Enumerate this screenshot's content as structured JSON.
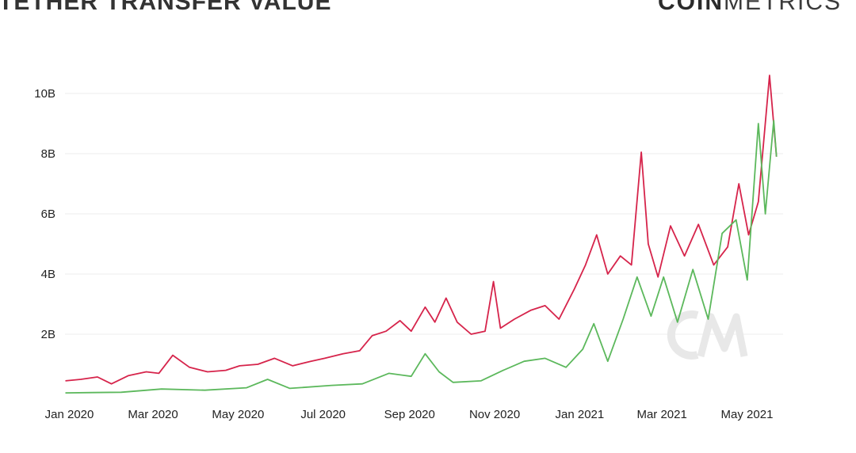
{
  "header": {
    "title": "TETHER TRANSFER VALUE",
    "brand_bold": "COIN",
    "brand_thin": "METRICS"
  },
  "colors": {
    "red": "#d6244b",
    "green": "#5cb85c",
    "grid": "#ececec",
    "watermark": "#e8e8e8"
  },
  "chart_data": {
    "type": "line",
    "title": "TETHER TRANSFER VALUE",
    "xlabel": "",
    "ylabel": "",
    "ylim": [
      0,
      11
    ],
    "y_ticks": [
      {
        "value": 2,
        "label": "2B"
      },
      {
        "value": 4,
        "label": "4B"
      },
      {
        "value": 6,
        "label": "6B"
      },
      {
        "value": 8,
        "label": "8B"
      },
      {
        "value": 10,
        "label": "10B"
      }
    ],
    "x_ticks": [
      {
        "date": "2020-01-01",
        "label": "Jan 2020"
      },
      {
        "date": "2020-03-01",
        "label": "Mar 2020"
      },
      {
        "date": "2020-05-01",
        "label": "May 2020"
      },
      {
        "date": "2020-07-01",
        "label": "Jul 2020"
      },
      {
        "date": "2020-09-01",
        "label": "Sep 2020"
      },
      {
        "date": "2020-11-01",
        "label": "Nov 2020"
      },
      {
        "date": "2021-01-01",
        "label": "Jan 2021"
      },
      {
        "date": "2021-03-01",
        "label": "Mar 2021"
      },
      {
        "date": "2021-05-01",
        "label": "May 2021"
      }
    ],
    "grid": true,
    "legend_position": "bottom",
    "series": [
      {
        "color": "#d6244b",
        "points": [
          [
            "2020-01-01",
            0.45
          ],
          [
            "2020-01-12",
            0.5
          ],
          [
            "2020-01-24",
            0.58
          ],
          [
            "2020-02-03",
            0.35
          ],
          [
            "2020-02-15",
            0.62
          ],
          [
            "2020-02-28",
            0.75
          ],
          [
            "2020-03-08",
            0.7
          ],
          [
            "2020-03-18",
            1.3
          ],
          [
            "2020-03-30",
            0.9
          ],
          [
            "2020-04-12",
            0.75
          ],
          [
            "2020-04-25",
            0.8
          ],
          [
            "2020-05-05",
            0.95
          ],
          [
            "2020-05-18",
            1.0
          ],
          [
            "2020-05-30",
            1.2
          ],
          [
            "2020-06-12",
            0.95
          ],
          [
            "2020-06-25",
            1.1
          ],
          [
            "2020-07-05",
            1.2
          ],
          [
            "2020-07-18",
            1.35
          ],
          [
            "2020-07-30",
            1.45
          ],
          [
            "2020-08-08",
            1.95
          ],
          [
            "2020-08-18",
            2.1
          ],
          [
            "2020-08-28",
            2.45
          ],
          [
            "2020-09-05",
            2.1
          ],
          [
            "2020-09-15",
            2.9
          ],
          [
            "2020-09-22",
            2.4
          ],
          [
            "2020-09-30",
            3.2
          ],
          [
            "2020-10-08",
            2.4
          ],
          [
            "2020-10-18",
            2.0
          ],
          [
            "2020-10-28",
            2.1
          ],
          [
            "2020-11-03",
            3.75
          ],
          [
            "2020-11-08",
            2.2
          ],
          [
            "2020-11-18",
            2.5
          ],
          [
            "2020-11-30",
            2.8
          ],
          [
            "2020-12-10",
            2.95
          ],
          [
            "2020-12-20",
            2.5
          ],
          [
            "2020-12-31",
            3.5
          ],
          [
            "2021-01-08",
            4.3
          ],
          [
            "2021-01-16",
            5.3
          ],
          [
            "2021-01-24",
            4.0
          ],
          [
            "2021-02-02",
            4.6
          ],
          [
            "2021-02-10",
            4.3
          ],
          [
            "2021-02-17",
            8.05
          ],
          [
            "2021-02-22",
            5.0
          ],
          [
            "2021-03-01",
            3.9
          ],
          [
            "2021-03-10",
            5.6
          ],
          [
            "2021-03-20",
            4.6
          ],
          [
            "2021-03-30",
            5.65
          ],
          [
            "2021-04-10",
            4.3
          ],
          [
            "2021-04-20",
            4.9
          ],
          [
            "2021-04-28",
            7.0
          ],
          [
            "2021-05-05",
            5.3
          ],
          [
            "2021-05-12",
            6.4
          ],
          [
            "2021-05-20",
            10.6
          ],
          [
            "2021-05-25",
            7.9
          ]
        ]
      },
      {
        "color": "#5cb85c",
        "points": [
          [
            "2020-01-01",
            0.05
          ],
          [
            "2020-01-20",
            0.06
          ],
          [
            "2020-02-10",
            0.07
          ],
          [
            "2020-03-10",
            0.18
          ],
          [
            "2020-04-10",
            0.14
          ],
          [
            "2020-05-10",
            0.22
          ],
          [
            "2020-05-25",
            0.5
          ],
          [
            "2020-06-10",
            0.2
          ],
          [
            "2020-07-10",
            0.3
          ],
          [
            "2020-08-01",
            0.35
          ],
          [
            "2020-08-20",
            0.7
          ],
          [
            "2020-09-05",
            0.6
          ],
          [
            "2020-09-15",
            1.35
          ],
          [
            "2020-09-25",
            0.75
          ],
          [
            "2020-10-05",
            0.4
          ],
          [
            "2020-10-25",
            0.45
          ],
          [
            "2020-11-10",
            0.8
          ],
          [
            "2020-11-25",
            1.1
          ],
          [
            "2020-12-10",
            1.2
          ],
          [
            "2020-12-25",
            0.9
          ],
          [
            "2021-01-06",
            1.5
          ],
          [
            "2021-01-14",
            2.35
          ],
          [
            "2021-01-24",
            1.1
          ],
          [
            "2021-02-04",
            2.5
          ],
          [
            "2021-02-14",
            3.9
          ],
          [
            "2021-02-24",
            2.6
          ],
          [
            "2021-03-05",
            3.9
          ],
          [
            "2021-03-15",
            2.4
          ],
          [
            "2021-03-26",
            4.15
          ],
          [
            "2021-04-06",
            2.5
          ],
          [
            "2021-04-16",
            5.35
          ],
          [
            "2021-04-26",
            5.8
          ],
          [
            "2021-05-04",
            3.8
          ],
          [
            "2021-05-12",
            9.0
          ],
          [
            "2021-05-17",
            6.0
          ],
          [
            "2021-05-23",
            9.1
          ],
          [
            "2021-05-25",
            7.9
          ]
        ]
      }
    ]
  }
}
